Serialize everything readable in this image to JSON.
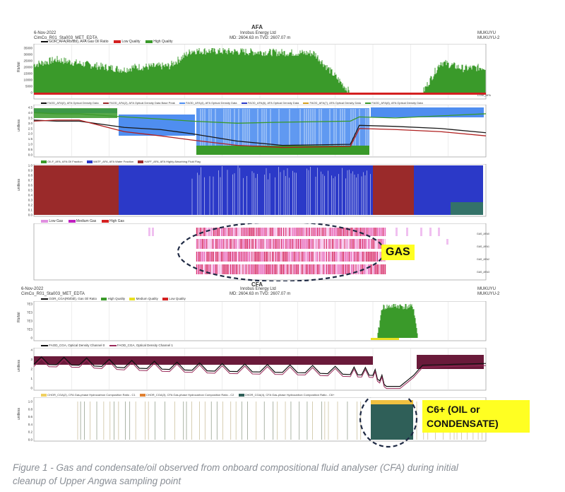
{
  "header_top": {
    "title": "AFA",
    "date": "6-Nov-2022",
    "well": "CimCo_R01_Sta003_MET_EDTA",
    "company": "Inrobus Energy Ltd",
    "depth": "MD: 2604.63 m   TVD: 2607.07 m",
    "right1": "MUKUYU",
    "right2": "MUKUYU-2"
  },
  "header_bottom": {
    "title": "CFA",
    "date": "6-Nov-2022",
    "well": "CimCo_R01_Sta003_MET_EDTA",
    "company": "Inrobus Energy Ltd",
    "depth": "MD: 2604.63 m   TVD: 2607.07 m",
    "right1": "MUKUYU",
    "right2": "MUKUYU-2"
  },
  "chart_data": [
    {
      "type": "area",
      "panel": "AFA GOR",
      "legend": [
        "GOR_AFA(Rb/bbl), AFA Gas Oil Ratio",
        "Low Quality",
        "High Quality"
      ],
      "ylabel": "Rb/bbl",
      "yticks": [
        "35000",
        "30000",
        "25000",
        "20000",
        "15000",
        "10000",
        "5000",
        "0"
      ],
      "ylim": [
        0,
        35000
      ],
      "right_label": "LOW_AFA",
      "x_fraction": [
        0,
        0.05,
        0.1,
        0.2,
        0.22,
        0.3,
        0.35,
        0.48,
        0.62,
        0.7,
        0.8,
        0.86,
        0.9,
        0.95,
        1
      ],
      "values": [
        22000,
        26000,
        23000,
        18000,
        20000,
        21000,
        33000,
        32000,
        31000,
        0,
        0,
        0,
        24000,
        19000,
        20000
      ]
    },
    {
      "type": "line",
      "panel": "AFA optical density",
      "legend": [
        "FAOD_AFA(0), AFA Optical Density Data",
        "FAOD_AFA(2), AFA Optical Density Data Base Peak",
        "FAOD_AFA(4), AFA Optical Density Data",
        "FAOD_AFA(6), AFA Optical Density Data",
        "FAOD_AFA(7), AFA Optical Density Data",
        "FAOD_AFA(8), AFA Optical Density Data"
      ],
      "ylabel": "unitless",
      "yticks": [
        "4.5",
        "4.0",
        "3.5",
        "3.0",
        "2.5",
        "2.0",
        "1.5",
        "1.0",
        "0.5",
        "0.0"
      ],
      "ylim": [
        0,
        4.5
      ],
      "x_fraction": [
        0,
        0.05,
        0.1,
        0.2,
        0.28,
        0.35,
        0.45,
        0.55,
        0.7,
        0.72,
        0.8,
        0.9,
        1
      ],
      "series": [
        {
          "values": [
            3.3,
            3.2,
            3.2,
            2.6,
            2.4,
            2.0,
            1.3,
            0.9,
            1.0,
            2.8,
            2.7,
            2.5,
            2.1
          ]
        },
        {
          "values": [
            3.2,
            3.3,
            3.3,
            2.2,
            1.8,
            1.4,
            0.9,
            0.7,
            0.8,
            2.5,
            2.4,
            2.2,
            1.8
          ]
        },
        {
          "values": [
            4.0,
            3.9,
            3.9,
            3.6,
            3.4,
            3.2,
            3.0,
            3.1,
            3.2,
            3.6,
            3.5,
            3.7,
            3.9
          ]
        }
      ]
    },
    {
      "type": "area",
      "panel": "AFA fractions",
      "legend": [
        "OILF_AFA, AFA Oil Fraction",
        "WATF_AFA, AFA Water Fraction",
        "HAFF_AFA, AFA Highly Absorbing Fluid Flag"
      ],
      "ylabel": "unitless",
      "yticks": [
        "1.0",
        "0.9",
        "0.8",
        "0.7",
        "0.6",
        "0.5",
        "0.4",
        "0.3",
        "0.2",
        "0.1",
        "0.0"
      ],
      "ylim": [
        0,
        1
      ],
      "x_fraction": [
        0,
        0.19,
        0.37,
        0.8,
        0.89,
        1
      ],
      "series": [
        {
          "name": "HAFF_AFA, AFA Highly Absorbing Fluid Flag",
          "values": [
            1,
            0,
            0,
            1,
            0,
            0
          ]
        },
        {
          "name": "WATF_AFA, AFA Water Fraction",
          "values": [
            0,
            1,
            0.9,
            0,
            1,
            1
          ]
        }
      ]
    },
    {
      "type": "heatmap",
      "panel": "AFA gas",
      "legend": [
        "Low Gas",
        "Medium Gas",
        "High Gas"
      ],
      "right_labels": [
        "GAS_AFA0",
        "GAS_AFA1",
        "GAS_AFA2",
        "GAS_AFA3"
      ],
      "x_fraction": [
        0.36,
        0.78
      ],
      "annotation": "GAS"
    },
    {
      "type": "area",
      "panel": "CFA GOR",
      "legend": [
        "GOR_CGA(Rb/bbl), Gas Oil Ratio",
        "High Quality",
        "Medium Quality",
        "Low Quality"
      ],
      "ylabel": "Rb/bbl",
      "yticks": [
        "7E3",
        "7E3",
        "7E3",
        "7E3",
        "0"
      ],
      "ylim": [
        0,
        8000
      ],
      "x_fraction": [
        0,
        0.76,
        0.77,
        0.8,
        0.84,
        0.85,
        1
      ],
      "values": [
        0,
        0,
        7200,
        7600,
        7300,
        0,
        0
      ]
    },
    {
      "type": "line",
      "panel": "CFA optical density",
      "legend": [
        "FAOD_CGA, Optical Density Channel 0",
        "FAOD_CGA, Optical Density Channel 1"
      ],
      "ylabel": "unitless",
      "yticks": [
        "4",
        "3",
        "2",
        "1",
        "0"
      ],
      "ylim": [
        0,
        4.5
      ],
      "x_fraction": [
        0,
        0.1,
        0.2,
        0.3,
        0.4,
        0.5,
        0.6,
        0.7,
        0.75,
        0.78,
        0.81,
        0.84,
        0.86,
        1
      ],
      "series": [
        {
          "values": [
            2.8,
            2.7,
            2.4,
            2.2,
            2.0,
            1.9,
            1.8,
            1.6,
            1.5,
            0.2,
            0.2,
            1.5,
            2.7,
            2.9
          ]
        }
      ]
    },
    {
      "type": "area",
      "panel": "CFA composition",
      "legend": [
        "CHOR_CGA(2), CFA Gas-phase Hydrocarbon Composition Ratio - C1",
        "CHOR_CGA(3), CFA Gas-phase Hydrocarbon Composition Ratio - C2",
        "CHOR_CGA(4), CFA Gas-phase Hydrocarbon Composition Ratio - C6+"
      ],
      "ylabel": "unitless",
      "yticks": [
        "1.0",
        "0.8",
        "0.6",
        "0.4",
        "0.2",
        "0.0"
      ],
      "ylim": [
        0,
        1
      ],
      "x_fraction": [
        0.76,
        0.85
      ],
      "annotation": "C6+ (OIL or CONDENSATE)"
    }
  ],
  "annotations": {
    "gas_label": "GAS",
    "c6_line1": "C6+ (OIL or",
    "c6_line2": "CONDENSATE)"
  },
  "colors": {
    "green": "#3a9a2a",
    "red": "#d42020",
    "blue": "#2b39c8",
    "lightblue": "#4f8ef0",
    "maroon": "#9a2a2a",
    "pink": "#e04090",
    "teal": "#2f5f58",
    "yellow": "#ffff22"
  },
  "caption": {
    "line1": "Figure 1 - Gas and condensate/oil observed from onboard compositional fluid analyser (CFA) during initial",
    "line2": "cleanup of Upper Angwa sampling point"
  }
}
